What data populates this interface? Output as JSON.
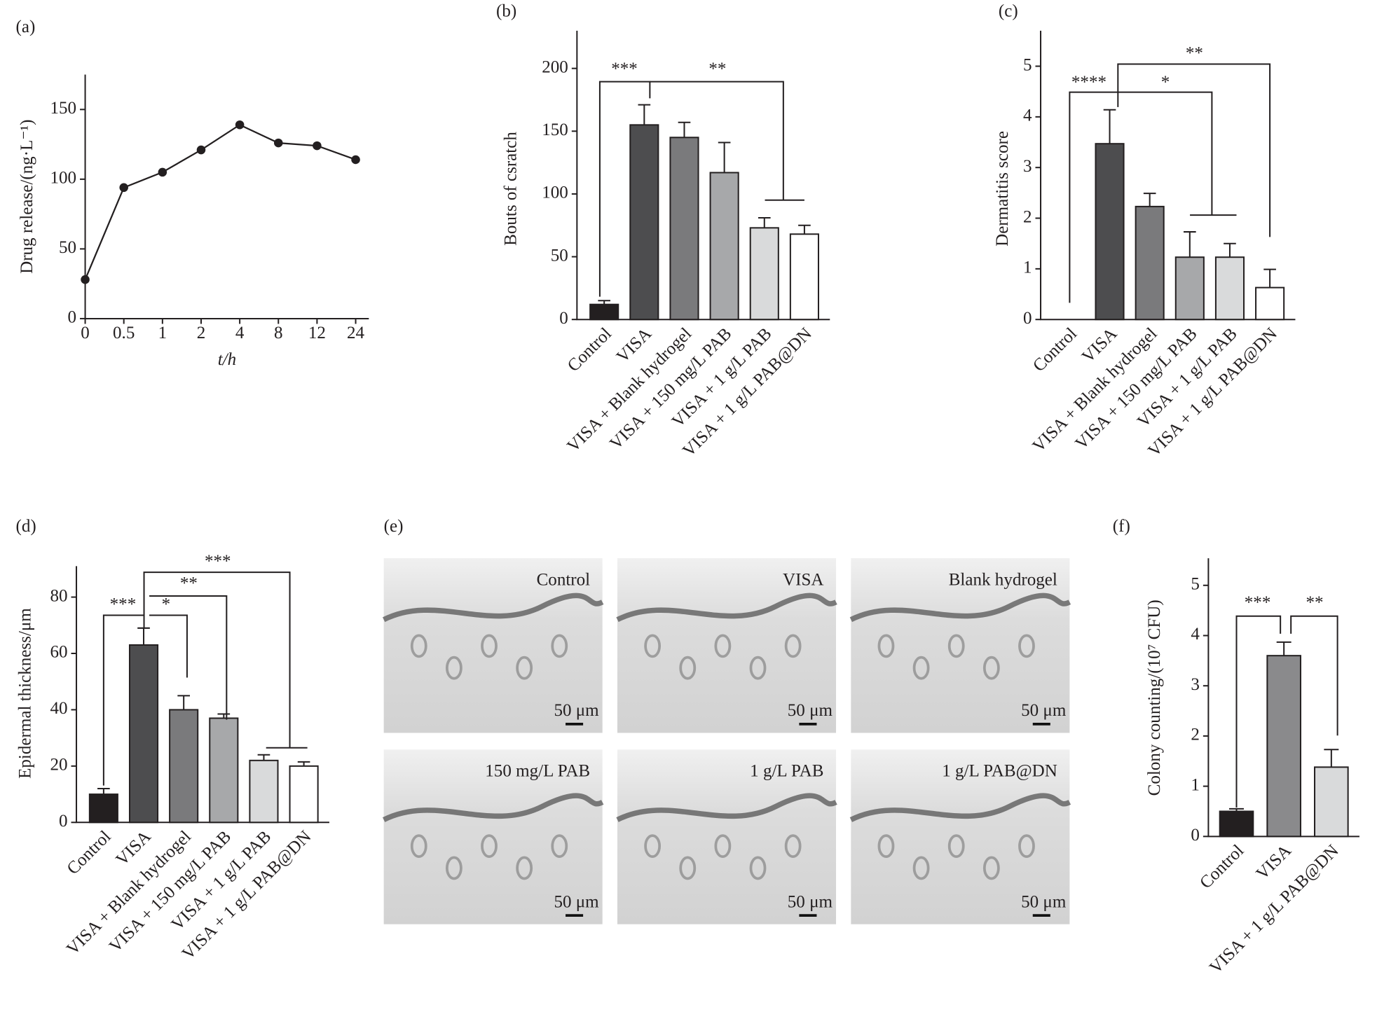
{
  "chart_data": [
    {
      "type": "line",
      "panel_label": "(a)",
      "ylabel": "Drug release/(ng·L⁻¹)",
      "xlabel": "t/h",
      "categories": [
        "0",
        "0.5",
        "1",
        "2",
        "4",
        "8",
        "12",
        "24"
      ],
      "values": [
        28,
        94,
        105,
        121,
        139,
        126,
        124,
        114
      ],
      "color": "#231f20",
      "ylim": [
        0,
        175
      ],
      "yticks": [
        0,
        50,
        100,
        150
      ]
    },
    {
      "type": "bar",
      "panel_label": "(b)",
      "ylabel": "Bouts of csratch",
      "categories": [
        "Control",
        "VISA",
        "VISA + Blank hydrogel",
        "VISA + 150 mg/L PAB",
        "VISA + 1 g/L PAB",
        "VISA + 1 g/L PAB@DN"
      ],
      "values": [
        12,
        155,
        145,
        117,
        73,
        68
      ],
      "errors": [
        3,
        16,
        12,
        24,
        8,
        7
      ],
      "colors": [
        "#231f20",
        "#4d4d4f",
        "#7a7a7c",
        "#a7a8aa",
        "#d9dadb",
        "#ffffff"
      ],
      "ylim": [
        0,
        230
      ],
      "yticks": [
        0,
        50,
        100,
        150,
        200
      ],
      "annotations": [
        "***",
        "**"
      ]
    },
    {
      "type": "bar",
      "panel_label": "(c)",
      "ylabel": "Dermatitis score",
      "categories": [
        "Control",
        "VISA",
        "VISA + Blank hydrogel",
        "VISA + 150 mg/L PAB",
        "VISA + 1 g/L PAB",
        "VISA + 1 g/L PAB@DN"
      ],
      "values": [
        0,
        3.47,
        2.23,
        1.23,
        1.23,
        0.63
      ],
      "errors": [
        0,
        0.67,
        0.26,
        0.5,
        0.27,
        0.36
      ],
      "colors": [
        "#231f20",
        "#4d4d4f",
        "#7a7a7c",
        "#a7a8aa",
        "#d9dadb",
        "#ffffff"
      ],
      "ylim": [
        0,
        5.7
      ],
      "yticks": [
        0,
        1,
        2,
        3,
        4,
        5
      ],
      "annotations": [
        "****",
        "*",
        "**"
      ]
    },
    {
      "type": "bar",
      "panel_label": "(d)",
      "ylabel": "Epidermal thickness/μm",
      "categories": [
        "Control",
        "VISA",
        "VISA + Blank hydrogel",
        "VISA + 150 mg/L PAB",
        "VISA + 1 g/L PAB",
        "VISA + 1 g/L PAB@DN"
      ],
      "values": [
        10,
        63,
        40,
        37,
        22,
        20
      ],
      "errors": [
        2,
        6,
        5,
        1.5,
        2,
        1.5
      ],
      "colors": [
        "#231f20",
        "#4d4d4f",
        "#7a7a7c",
        "#a7a8aa",
        "#d9dadb",
        "#ffffff"
      ],
      "ylim": [
        0,
        91
      ],
      "yticks": [
        0,
        20,
        40,
        60,
        80
      ],
      "annotations": [
        "***",
        "*",
        "**",
        "***"
      ]
    },
    {
      "type": "micrograph",
      "panel_label": "(e)",
      "images": [
        {
          "label": "Control",
          "scale_bar": "50 μm"
        },
        {
          "label": "VISA",
          "scale_bar": "50 μm"
        },
        {
          "label": "Blank hydrogel",
          "scale_bar": "50 μm"
        },
        {
          "label": "150 mg/L PAB",
          "scale_bar": "50 μm"
        },
        {
          "label": "1 g/L PAB",
          "scale_bar": "50 μm"
        },
        {
          "label": "1 g/L PAB@DN",
          "scale_bar": "50 μm"
        }
      ]
    },
    {
      "type": "bar",
      "panel_label": "(f)",
      "ylabel": "Colony counting/(10⁷ CFU)",
      "categories": [
        "Control",
        "VISA",
        "VISA + 1 g/L PAB@DN"
      ],
      "values": [
        0.5,
        3.6,
        1.38
      ],
      "errors": [
        0.05,
        0.27,
        0.35
      ],
      "colors": [
        "#231f20",
        "#8a8a8c",
        "#d9dadb"
      ],
      "ylim": [
        0,
        5.54
      ],
      "yticks": [
        0,
        1,
        2,
        3,
        4,
        5
      ],
      "annotations": [
        "***",
        "**"
      ]
    }
  ]
}
